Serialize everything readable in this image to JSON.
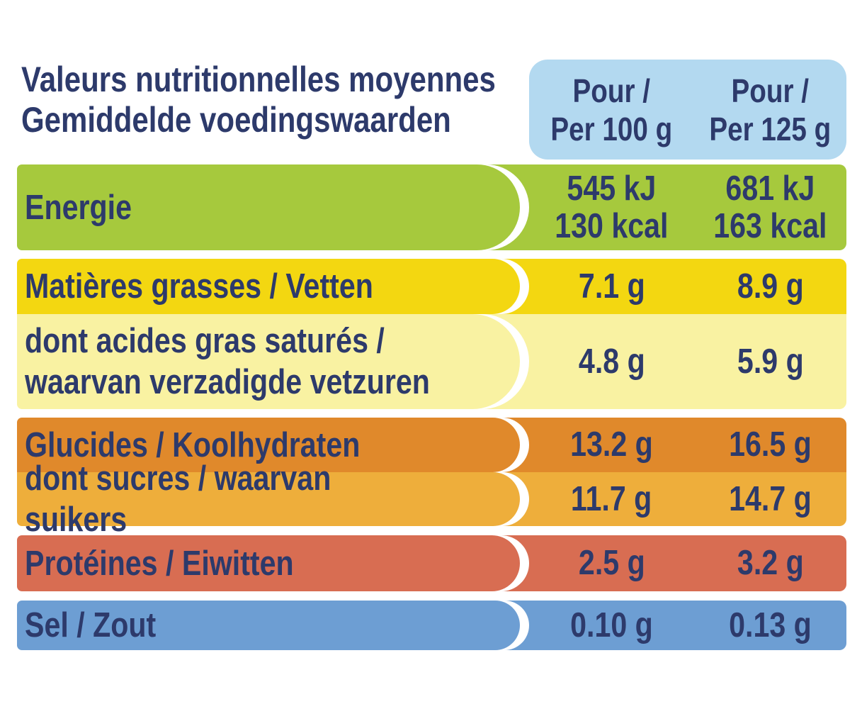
{
  "title": {
    "line_fr": "Valeurs nutritionnelles moyennes",
    "line_nl": "Gemiddelde voedingswaarden",
    "text": "Valeurs nutritionnelles moyennes\nGemiddelde voedingswaarden"
  },
  "columns_header": {
    "per_100g": "Pour /\nPer 100 g",
    "per_125g": "Pour /\nPer 125 g",
    "bg_color": "#b3d9f0"
  },
  "rows": [
    {
      "id": "energy",
      "label": "Energie",
      "per_100g": "545 kJ\n130 kcal",
      "per_125g": "681 kJ\n163 kcal",
      "color": "#a6c93d"
    },
    {
      "id": "fat",
      "label": "Matières grasses / Vetten",
      "per_100g": "7.1 g",
      "per_125g": "8.9 g",
      "color": "#f3d711"
    },
    {
      "id": "saturated-fat",
      "label": "dont acides gras saturés /\nwaarvan verzadigde vetzuren",
      "per_100g": "4.8 g",
      "per_125g": "5.9 g",
      "color": "#f9f2a2"
    },
    {
      "id": "carbohydrates",
      "label": "Glucides / Koolhydraten",
      "per_100g": "13.2 g",
      "per_125g": "16.5 g",
      "color": "#e0892b"
    },
    {
      "id": "sugars",
      "label": "dont sucres / waarvan suikers",
      "per_100g": "11.7 g",
      "per_125g": "14.7 g",
      "color": "#eeae3b"
    },
    {
      "id": "protein",
      "label": "Protéines / Eiwitten",
      "per_100g": "2.5 g",
      "per_125g": "3.2 g",
      "color": "#d86d52"
    },
    {
      "id": "salt",
      "label": "Sel / Zout",
      "per_100g": "0.10 g",
      "per_125g": "0.13 g",
      "color": "#6d9ed3"
    }
  ],
  "text_color": "#2d3a6b"
}
